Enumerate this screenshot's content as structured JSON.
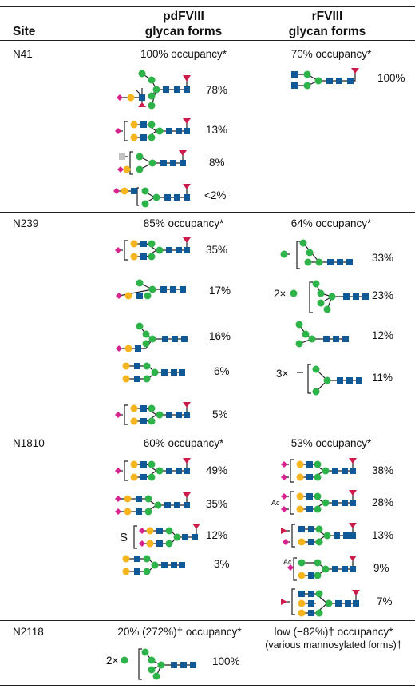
{
  "header": {
    "site": "Site",
    "pd_line1": "pdFVIII",
    "pd_line2": "glycan forms",
    "r_line1": "rFVIII",
    "r_line2": "glycan forms"
  },
  "colors": {
    "mannose": "#2db34a",
    "galactose": "#f6b51c",
    "glcnac": "#0f5a96",
    "fucose": "#cc1a4a",
    "sialic_acid": "#d6238e",
    "galnac": "#c2c2c2",
    "line": "#222222"
  },
  "sites": {
    "n41": {
      "label": "N41",
      "pd_occupancy": "100% occupancy*",
      "r_occupancy": "70% occupancy*",
      "pd_forms": [
        "78%",
        "13%",
        "8%",
        "<2%"
      ],
      "r_forms": [
        "100%"
      ]
    },
    "n239": {
      "label": "N239",
      "pd_occupancy": "85% occupancy*",
      "r_occupancy": "64% occupancy*",
      "pd_forms": [
        "35%",
        "17%",
        "16%",
        "6%",
        "5%"
      ],
      "r_forms": [
        "33%",
        "23%",
        "12%",
        "11%"
      ],
      "r_multipliers": [
        "2×",
        "3×"
      ]
    },
    "n1810": {
      "label": "N1810",
      "pd_occupancy": "60% occupancy*",
      "r_occupancy": "53% occupancy*",
      "pd_forms": [
        "49%",
        "35%",
        "12%",
        "3%"
      ],
      "pd_s_label": "S",
      "r_forms": [
        "38%",
        "28%",
        "13%",
        "9%",
        "7%"
      ],
      "ac_label": "Ac"
    },
    "n2118": {
      "label": "N2118",
      "pd_occupancy": "20% (272%)† occupancy*",
      "r_occupancy_line1": "low (−82%)† occupancy*",
      "r_occupancy_line2": "(various mannosylated forms)†",
      "pd_multiplier": "2×",
      "pd_forms": [
        "100%"
      ]
    }
  }
}
